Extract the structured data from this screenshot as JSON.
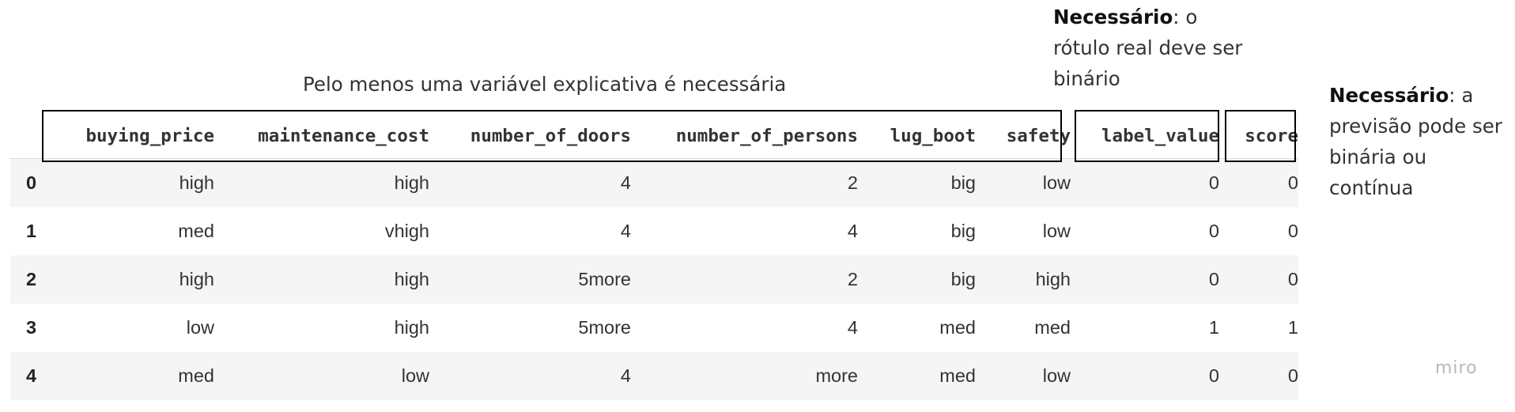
{
  "annotations": {
    "features": "Pelo menos uma variável explicativa é necessária",
    "label_bold": "Necessário",
    "label_rest": ": o rótulo real deve ser binário",
    "score_bold": "Necessário",
    "score_rest": ": a previsão pode ser binária ou contínua"
  },
  "table": {
    "columns": [
      "buying_price",
      "maintenance_cost",
      "number_of_doors",
      "number_of_persons",
      "lug_boot",
      "safety",
      "label_value",
      "score"
    ],
    "rows": [
      {
        "index": "0",
        "cells": [
          "high",
          "high",
          "4",
          "2",
          "big",
          "low",
          "0",
          "0"
        ]
      },
      {
        "index": "1",
        "cells": [
          "med",
          "vhigh",
          "4",
          "4",
          "big",
          "low",
          "0",
          "0"
        ]
      },
      {
        "index": "2",
        "cells": [
          "high",
          "high",
          "5more",
          "2",
          "big",
          "high",
          "0",
          "0"
        ]
      },
      {
        "index": "3",
        "cells": [
          "low",
          "high",
          "5more",
          "4",
          "med",
          "med",
          "1",
          "1"
        ]
      },
      {
        "index": "4",
        "cells": [
          "med",
          "low",
          "4",
          "more",
          "med",
          "low",
          "0",
          "0"
        ]
      }
    ]
  },
  "watermark": "miro"
}
